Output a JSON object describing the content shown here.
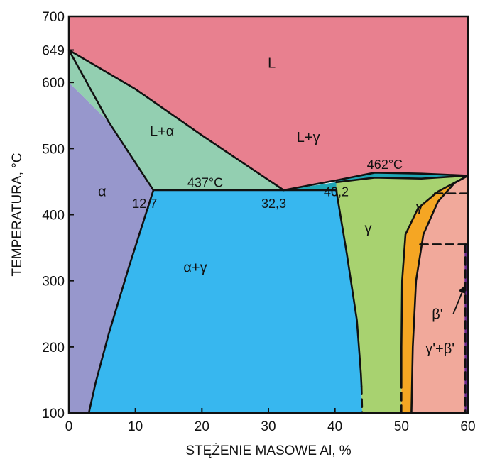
{
  "chart_data": {
    "type": "phase-diagram",
    "xlabel": "STĘŻENIE MASOWE Al, %",
    "ylabel": "TEMPERATURA, °C",
    "xlim": [
      0,
      60
    ],
    "ylim": [
      100,
      700
    ],
    "x_ticks": [
      {
        "value": 0,
        "label": "0"
      },
      {
        "value": 10,
        "label": "10"
      },
      {
        "value": 20,
        "label": "20"
      },
      {
        "value": 30,
        "label": "30"
      },
      {
        "value": 40,
        "label": "40"
      },
      {
        "value": 50,
        "label": "50"
      },
      {
        "value": 60,
        "label": "60"
      }
    ],
    "y_ticks": [
      {
        "value": 100,
        "label": "100"
      },
      {
        "value": 200,
        "label": "200"
      },
      {
        "value": 300,
        "label": "300"
      },
      {
        "value": 400,
        "label": "400"
      },
      {
        "value": 500,
        "label": "500"
      },
      {
        "value": 600,
        "label": "600"
      },
      {
        "value": 649,
        "label": "649"
      },
      {
        "value": 700,
        "label": "700"
      }
    ],
    "regions": [
      {
        "id": "L",
        "label": "L",
        "color": "#E8808F",
        "label_at": [
          30.5,
          622
        ],
        "polygon": [
          [
            0,
            700
          ],
          [
            60,
            700
          ],
          [
            60,
            459
          ],
          [
            53,
            462
          ],
          [
            46,
            463.5
          ],
          [
            40.2,
            452
          ],
          [
            32.3,
            437
          ],
          [
            20,
            520
          ],
          [
            10,
            590
          ],
          [
            0,
            649
          ]
        ]
      },
      {
        "id": "L-alpha",
        "label": "L+α",
        "color": "#93CFB1",
        "label_at": [
          14,
          519
        ],
        "polygon": [
          [
            0,
            649
          ],
          [
            10,
            590
          ],
          [
            20,
            520
          ],
          [
            32.3,
            437
          ],
          [
            12.7,
            437
          ],
          [
            6,
            540
          ],
          [
            0,
            600
          ]
        ]
      },
      {
        "id": "alpha",
        "label": "α",
        "color": "#9797CC",
        "label_at": [
          5,
          428
        ],
        "polygon": [
          [
            0,
            600
          ],
          [
            6,
            540
          ],
          [
            12.7,
            437
          ],
          [
            9,
            320
          ],
          [
            6,
            220
          ],
          [
            4,
            145
          ],
          [
            3,
            100
          ],
          [
            0,
            100
          ]
        ]
      },
      {
        "id": "alpha-gamma",
        "label": "α+γ",
        "color": "#37B7EF",
        "label_at": [
          19,
          313
        ],
        "polygon": [
          [
            12.7,
            437
          ],
          [
            40.2,
            437
          ],
          [
            41.8,
            340
          ],
          [
            43.3,
            240
          ],
          [
            43.9,
            160
          ],
          [
            44.1,
            100
          ],
          [
            3,
            100
          ],
          [
            4,
            145
          ],
          [
            6,
            220
          ],
          [
            9,
            320
          ]
        ]
      },
      {
        "id": "L-gamma-strip",
        "label": "",
        "color": "#20A6B5",
        "label_at": null,
        "polygon": [
          [
            32.3,
            437
          ],
          [
            40.2,
            437
          ],
          [
            40.2,
            452
          ],
          [
            46,
            463.5
          ],
          [
            53,
            462
          ],
          [
            60,
            459
          ],
          [
            53,
            454.5
          ],
          [
            46,
            456
          ],
          [
            40.2,
            449
          ]
        ]
      },
      {
        "id": "L-gamma",
        "label": "L+γ",
        "color": "#E8808F",
        "label_at": [
          36,
          510
        ],
        "polygon": []
      },
      {
        "id": "gamma",
        "label": "γ",
        "color": "#A8D270",
        "label_at": [
          45,
          372
        ],
        "polygon": [
          [
            40.2,
            449
          ],
          [
            46,
            456
          ],
          [
            53,
            454.5
          ],
          [
            60,
            459
          ],
          [
            55.5,
            435
          ],
          [
            52.5,
            410
          ],
          [
            50.6,
            370
          ],
          [
            50.1,
            300
          ],
          [
            50,
            200
          ],
          [
            50,
            100
          ],
          [
            44.1,
            100
          ],
          [
            43.9,
            160
          ],
          [
            43.3,
            240
          ],
          [
            41.8,
            340
          ],
          [
            40.2,
            437
          ]
        ]
      },
      {
        "id": "gamma-prime",
        "label": "γ'",
        "color": "#F5A623",
        "label_at": [
          52.9,
          405
        ],
        "polygon": [
          [
            60,
            459
          ],
          [
            55.5,
            435
          ],
          [
            52.5,
            410
          ],
          [
            50.6,
            370
          ],
          [
            50.1,
            300
          ],
          [
            50,
            200
          ],
          [
            50,
            100
          ],
          [
            51.5,
            100
          ],
          [
            51.7,
            200
          ],
          [
            52.2,
            300
          ],
          [
            53.3,
            370
          ],
          [
            55.5,
            420
          ],
          [
            58,
            448
          ]
        ]
      },
      {
        "id": "gamma-prime-beta-prime",
        "label": "γ'+β'",
        "color": "#F1A99B",
        "label_at": [
          55.8,
          190
        ],
        "polygon": [
          [
            60,
            459
          ],
          [
            58,
            448
          ],
          [
            55.5,
            420
          ],
          [
            53.3,
            370
          ],
          [
            52.2,
            300
          ],
          [
            51.7,
            200
          ],
          [
            51.5,
            100
          ],
          [
            59.6,
            100
          ],
          [
            59.6,
            355
          ],
          [
            60,
            355
          ]
        ]
      },
      {
        "id": "beta-prime",
        "label": "β'",
        "color": "#6A2A8E",
        "label_at": [
          55.4,
          242
        ],
        "polygon": [
          [
            59.5,
            100
          ],
          [
            60,
            100
          ],
          [
            60,
            355
          ],
          [
            59.5,
            355
          ]
        ]
      }
    ],
    "boundaries": [
      {
        "style": "solid",
        "points": [
          [
            0,
            649
          ],
          [
            10,
            590
          ],
          [
            20,
            520
          ],
          [
            32.3,
            437
          ]
        ]
      },
      {
        "style": "solid",
        "points": [
          [
            0,
            649
          ],
          [
            6,
            540
          ],
          [
            12.7,
            437
          ]
        ]
      },
      {
        "style": "solid",
        "points": [
          [
            12.7,
            437
          ],
          [
            9,
            320
          ],
          [
            6,
            220
          ],
          [
            4,
            145
          ],
          [
            3,
            100
          ]
        ]
      },
      {
        "style": "solid",
        "points": [
          [
            12.7,
            437
          ],
          [
            40.2,
            437
          ]
        ]
      },
      {
        "style": "solid",
        "points": [
          [
            40.2,
            437
          ],
          [
            41.8,
            340
          ],
          [
            43.3,
            240
          ],
          [
            43.9,
            160
          ],
          [
            44,
            140
          ]
        ]
      },
      {
        "style": "dashed",
        "points": [
          [
            44,
            140
          ],
          [
            44.1,
            100
          ]
        ]
      },
      {
        "style": "solid",
        "points": [
          [
            32.3,
            437
          ],
          [
            40.2,
            452
          ],
          [
            46,
            463.5
          ],
          [
            53,
            462
          ],
          [
            60,
            459
          ]
        ]
      },
      {
        "style": "solid",
        "points": [
          [
            40.2,
            449
          ],
          [
            46,
            456
          ],
          [
            53,
            454.5
          ],
          [
            60,
            459
          ]
        ]
      },
      {
        "style": "solid",
        "points": [
          [
            60,
            459
          ],
          [
            55.5,
            435
          ],
          [
            52.5,
            410
          ],
          [
            50.6,
            370
          ],
          [
            50.1,
            300
          ],
          [
            50,
            200
          ],
          [
            50,
            150
          ]
        ]
      },
      {
        "style": "dashed",
        "points": [
          [
            50,
            150
          ],
          [
            50,
            100
          ]
        ]
      },
      {
        "style": "solid",
        "points": [
          [
            60,
            459
          ],
          [
            58,
            448
          ],
          [
            55.5,
            420
          ],
          [
            53.3,
            370
          ],
          [
            52.2,
            300
          ],
          [
            51.7,
            200
          ],
          [
            51.5,
            100
          ]
        ]
      },
      {
        "style": "dashed",
        "points": [
          [
            55,
            432
          ],
          [
            60,
            432
          ]
        ]
      },
      {
        "style": "dashed",
        "points": [
          [
            52.8,
            355
          ],
          [
            60,
            355
          ]
        ]
      },
      {
        "style": "dashed",
        "points": [
          [
            59.6,
            355
          ],
          [
            59.6,
            100
          ]
        ]
      }
    ],
    "point_labels": [
      {
        "text": "12,7",
        "at": [
          11.4,
          410
        ]
      },
      {
        "text": "32,3",
        "at": [
          30.8,
          410
        ]
      },
      {
        "text": "40,2",
        "at": [
          40.2,
          428
        ]
      },
      {
        "text": "437°C",
        "at": [
          20.5,
          442
        ]
      },
      {
        "text": "462°C",
        "at": [
          47.5,
          469
        ]
      }
    ],
    "arrow": {
      "from": [
        57.8,
        250
      ],
      "to": [
        59.5,
        292
      ]
    }
  }
}
